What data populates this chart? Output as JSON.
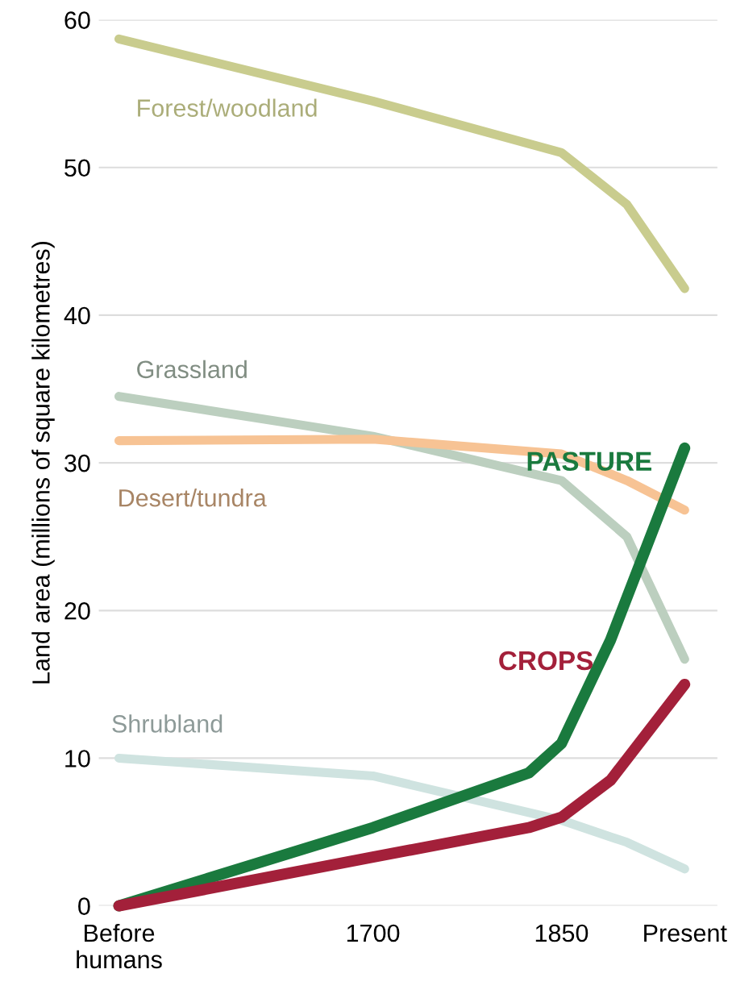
{
  "chart_data": {
    "type": "line",
    "ylabel": "Land area (millions of square kilometres)",
    "x": [
      1498,
      1700,
      1850,
      1902,
      1948
    ],
    "series": [
      {
        "name": "Forest/woodland",
        "color": "#c9cc8e",
        "values": [
          58.7,
          54.5,
          51.0,
          47.5,
          41.8
        ]
      },
      {
        "name": "Grassland",
        "color": "#bccfbf",
        "values": [
          34.5,
          31.8,
          28.8,
          25.0,
          16.7
        ]
      },
      {
        "name": "Desert/tundra",
        "color": "#f7c394",
        "values": [
          31.5,
          31.6,
          30.6,
          28.8,
          26.8
        ]
      },
      {
        "name": "Shrubland",
        "color": "#cfe3e0",
        "values": [
          10.0,
          8.8,
          5.8,
          4.3,
          2.5
        ]
      },
      {
        "name": "PASTURE",
        "color": "#1a7a3e",
        "x": [
          1498,
          1700,
          1824,
          1850,
          1889,
          1948
        ],
        "values": [
          0,
          5.3,
          9.0,
          11.0,
          18.0,
          31.0
        ]
      },
      {
        "name": "CROPS",
        "color": "#a3203a",
        "x": [
          1498,
          1700,
          1824,
          1850,
          1889,
          1948
        ],
        "values": [
          0,
          3.3,
          5.3,
          6.0,
          8.5,
          15.0
        ]
      }
    ],
    "xlim": [
      1482,
      1974
    ],
    "ylim": [
      0,
      60
    ],
    "xticks": [
      {
        "value": 1498,
        "label": "Before\nhumans"
      },
      1700,
      1850,
      {
        "value": 1948,
        "label": "Present"
      }
    ],
    "yticks": [
      0,
      10,
      20,
      30,
      40,
      50,
      60
    ],
    "grid": "y",
    "line_style": "solid"
  }
}
